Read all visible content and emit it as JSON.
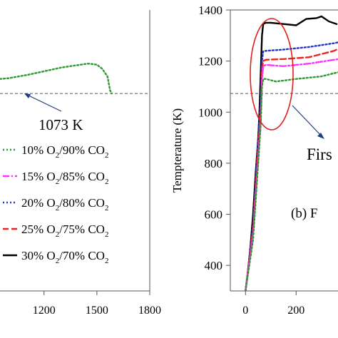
{
  "chart_data": [
    {
      "panel": "left",
      "type": "line",
      "x_ticks": [
        "1200",
        "1500",
        "1800"
      ],
      "xlim": [
        950,
        1800
      ],
      "ylim": [
        300,
        1400
      ],
      "reference_line": {
        "y": 1073,
        "label": "1073 K"
      },
      "series": [
        {
          "name": "10% O2/90% CO2",
          "color": "#2e9a2e",
          "dash": "dotted",
          "x": [
            950,
            1000,
            1100,
            1200,
            1300,
            1400,
            1450,
            1500,
            1530,
            1560,
            1575,
            1585
          ],
          "y": [
            1130,
            1133,
            1145,
            1160,
            1175,
            1185,
            1190,
            1186,
            1170,
            1140,
            1085,
            1073
          ]
        }
      ],
      "legend": [
        {
          "pre": "10% O",
          "sub1": "2",
          "mid": "/90% CO",
          "sub2": "2",
          "color": "#2e9a2e",
          "dash": "dotted"
        },
        {
          "pre": "15% O",
          "sub1": "2",
          "mid": "/85% CO",
          "sub2": "2",
          "color": "#ff33ff",
          "dash": "dashdot"
        },
        {
          "pre": "20% O",
          "sub1": "2",
          "mid": "/80% CO",
          "sub2": "2",
          "color": "#2233cc",
          "dash": "dotted"
        },
        {
          "pre": "25% O",
          "sub1": "2",
          "mid": "/75% CO",
          "sub2": "2",
          "color": "#ee2222",
          "dash": "dashed"
        },
        {
          "pre": "30% O",
          "sub1": "2",
          "mid": "/70% CO",
          "sub2": "2",
          "color": "#000000",
          "dash": "solid"
        }
      ]
    },
    {
      "panel": "right",
      "type": "line",
      "ylabel": "Tempterature (K)",
      "y_ticks": [
        "400",
        "600",
        "800",
        "1000",
        "1200",
        "1400"
      ],
      "x_ticks": [
        "0",
        "200"
      ],
      "xlim": [
        -60,
        420
      ],
      "ylim": [
        300,
        1400
      ],
      "reference_line": {
        "y": 1073
      },
      "annotation_text": "Firs",
      "panel_label": "(b)  F",
      "series": [
        {
          "name": "30% O2/70% CO2",
          "color": "#000000",
          "dash": "solid",
          "x": [
            0,
            10,
            20,
            30,
            40,
            50,
            55,
            60,
            65,
            70,
            80,
            100,
            150,
            200,
            240,
            280,
            300,
            330,
            360
          ],
          "y": [
            300,
            380,
            480,
            600,
            760,
            900,
            1000,
            1150,
            1300,
            1345,
            1350,
            1350,
            1345,
            1340,
            1365,
            1368,
            1375,
            1355,
            1345
          ]
        },
        {
          "name": "20% O2/80% CO2",
          "color": "#2233cc",
          "dash": "dotted",
          "x": [
            0,
            30,
            50,
            60,
            65,
            70,
            80,
            150,
            250,
            350,
            420
          ],
          "y": [
            300,
            560,
            900,
            1050,
            1200,
            1238,
            1240,
            1245,
            1255,
            1270,
            1285
          ]
        },
        {
          "name": "25% O2/75% CO2",
          "color": "#ee2222",
          "dash": "dashed",
          "x": [
            0,
            30,
            50,
            60,
            65,
            70,
            80,
            150,
            250,
            350,
            420
          ],
          "y": [
            300,
            540,
            860,
            1000,
            1170,
            1200,
            1205,
            1208,
            1215,
            1240,
            1275
          ]
        },
        {
          "name": "15% O2/85% CO2",
          "color": "#ff33ff",
          "dash": "dashdot",
          "x": [
            0,
            30,
            50,
            60,
            65,
            70,
            80,
            150,
            250,
            350,
            420
          ],
          "y": [
            300,
            520,
            820,
            960,
            1130,
            1180,
            1185,
            1180,
            1190,
            1205,
            1215
          ]
        },
        {
          "name": "10% O2/90% CO2",
          "color": "#2e9a2e",
          "dash": "dotted",
          "x": [
            0,
            30,
            50,
            60,
            65,
            70,
            80,
            120,
            200,
            300,
            360,
            420
          ],
          "y": [
            300,
            500,
            800,
            950,
            1100,
            1130,
            1130,
            1120,
            1130,
            1140,
            1155,
            1165
          ]
        }
      ]
    }
  ]
}
